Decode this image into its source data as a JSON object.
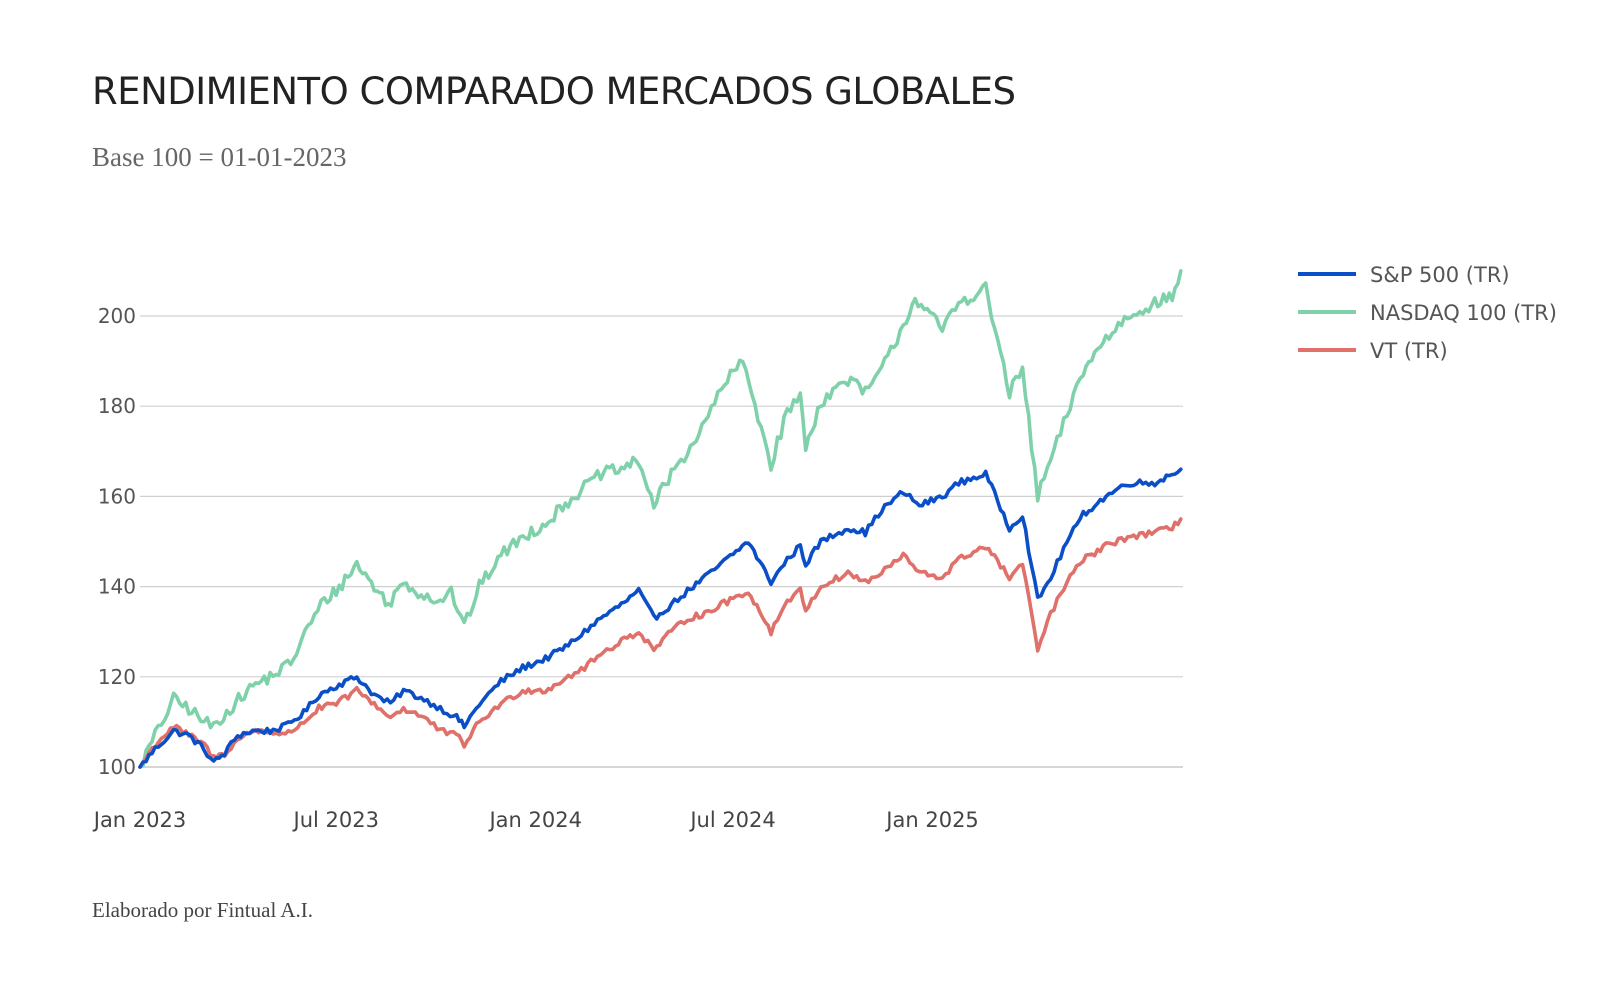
{
  "header": {
    "title": "RENDIMIENTO COMPARADO MERCADOS GLOBALES",
    "subtitle": "Base 100 = 01-01-2023"
  },
  "footer": {
    "credit": "Elaborado por Fintual A.I."
  },
  "chart_data": {
    "type": "line",
    "title": "RENDIMIENTO COMPARADO MERCADOS GLOBALES",
    "subtitle": "Base 100 = 01-01-2023",
    "xlabel": "",
    "ylabel": "",
    "ylim": [
      100,
      210
    ],
    "yticks": [
      100,
      120,
      140,
      160,
      180,
      200
    ],
    "xlim": [
      "2023-01-01",
      "2025-08-20"
    ],
    "xticks": [
      {
        "date": "2023-01-01",
        "label": "Jan 2023"
      },
      {
        "date": "2023-07-01",
        "label": "Jul 2023"
      },
      {
        "date": "2024-01-01",
        "label": "Jan 2024"
      },
      {
        "date": "2024-07-01",
        "label": "Jul 2024"
      },
      {
        "date": "2025-01-01",
        "label": "Jan 2025"
      }
    ],
    "grid": "horizontal",
    "legend_position": "right",
    "series": [
      {
        "name": "S&P 500 (TR)",
        "color": "#0a4fc8",
        "points": [
          [
            "2023-01-01",
            100
          ],
          [
            "2023-01-15",
            104
          ],
          [
            "2023-02-01",
            108
          ],
          [
            "2023-02-15",
            107
          ],
          [
            "2023-03-01",
            104
          ],
          [
            "2023-03-10",
            101
          ],
          [
            "2023-03-20",
            103
          ],
          [
            "2023-04-01",
            107
          ],
          [
            "2023-04-15",
            108
          ],
          [
            "2023-05-01",
            108
          ],
          [
            "2023-05-15",
            109
          ],
          [
            "2023-06-01",
            112
          ],
          [
            "2023-06-15",
            116
          ],
          [
            "2023-07-01",
            118
          ],
          [
            "2023-07-20",
            120
          ],
          [
            "2023-08-05",
            116
          ],
          [
            "2023-08-20",
            114
          ],
          [
            "2023-09-01",
            117
          ],
          [
            "2023-09-20",
            115
          ],
          [
            "2023-10-05",
            113
          ],
          [
            "2023-10-20",
            111
          ],
          [
            "2023-10-27",
            109
          ],
          [
            "2023-11-10",
            114
          ],
          [
            "2023-11-30",
            119
          ],
          [
            "2023-12-20",
            122
          ],
          [
            "2024-01-10",
            124
          ],
          [
            "2024-01-31",
            127
          ],
          [
            "2024-02-15",
            130
          ],
          [
            "2024-03-01",
            133
          ],
          [
            "2024-03-20",
            136
          ],
          [
            "2024-04-05",
            139
          ],
          [
            "2024-04-19",
            133
          ],
          [
            "2024-05-05",
            136
          ],
          [
            "2024-05-20",
            139
          ],
          [
            "2024-06-05",
            142
          ],
          [
            "2024-06-20",
            145
          ],
          [
            "2024-07-15",
            150
          ],
          [
            "2024-08-05",
            141
          ],
          [
            "2024-08-20",
            146
          ],
          [
            "2024-09-01",
            149
          ],
          [
            "2024-09-06",
            145
          ],
          [
            "2024-09-20",
            150
          ],
          [
            "2024-10-15",
            153
          ],
          [
            "2024-10-31",
            152
          ],
          [
            "2024-11-15",
            157
          ],
          [
            "2024-12-05",
            161
          ],
          [
            "2024-12-20",
            158
          ],
          [
            "2025-01-10",
            160
          ],
          [
            "2025-01-25",
            163
          ],
          [
            "2025-02-19",
            165
          ],
          [
            "2025-03-13",
            153
          ],
          [
            "2025-03-25",
            156
          ],
          [
            "2025-04-08",
            137
          ],
          [
            "2025-04-20",
            142
          ],
          [
            "2025-05-05",
            150
          ],
          [
            "2025-05-20",
            156
          ],
          [
            "2025-06-10",
            160
          ],
          [
            "2025-06-30",
            163
          ],
          [
            "2025-07-25",
            163
          ],
          [
            "2025-08-10",
            165
          ],
          [
            "2025-08-18",
            166
          ]
        ]
      },
      {
        "name": "NASDAQ 100 (TR)",
        "color": "#7fd1aa",
        "points": [
          [
            "2023-01-01",
            100
          ],
          [
            "2023-01-15",
            107
          ],
          [
            "2023-02-01",
            115
          ],
          [
            "2023-02-15",
            113
          ],
          [
            "2023-03-01",
            110
          ],
          [
            "2023-03-10",
            109
          ],
          [
            "2023-03-25",
            113
          ],
          [
            "2023-04-15",
            118
          ],
          [
            "2023-05-01",
            120
          ],
          [
            "2023-05-20",
            123
          ],
          [
            "2023-06-05",
            131
          ],
          [
            "2023-06-20",
            137
          ],
          [
            "2023-07-01",
            139
          ],
          [
            "2023-07-20",
            145
          ],
          [
            "2023-08-05",
            140
          ],
          [
            "2023-08-18",
            136
          ],
          [
            "2023-09-01",
            141
          ],
          [
            "2023-09-20",
            138
          ],
          [
            "2023-10-05",
            137
          ],
          [
            "2023-10-15",
            139
          ],
          [
            "2023-10-27",
            131
          ],
          [
            "2023-11-10",
            140
          ],
          [
            "2023-11-30",
            147
          ],
          [
            "2023-12-20",
            151
          ],
          [
            "2024-01-10",
            154
          ],
          [
            "2024-01-31",
            159
          ],
          [
            "2024-02-15",
            162
          ],
          [
            "2024-03-01",
            165
          ],
          [
            "2024-03-20",
            166
          ],
          [
            "2024-04-05",
            168
          ],
          [
            "2024-04-19",
            158
          ],
          [
            "2024-05-05",
            165
          ],
          [
            "2024-05-20",
            170
          ],
          [
            "2024-06-05",
            176
          ],
          [
            "2024-06-20",
            184
          ],
          [
            "2024-07-10",
            190
          ],
          [
            "2024-07-24",
            178
          ],
          [
            "2024-08-05",
            167
          ],
          [
            "2024-08-20",
            179
          ],
          [
            "2024-09-01",
            182
          ],
          [
            "2024-09-06",
            171
          ],
          [
            "2024-09-20",
            181
          ],
          [
            "2024-10-15",
            186
          ],
          [
            "2024-10-31",
            183
          ],
          [
            "2024-11-15",
            188
          ],
          [
            "2024-12-05",
            198
          ],
          [
            "2024-12-16",
            204
          ],
          [
            "2025-01-10",
            197
          ],
          [
            "2025-01-25",
            203
          ],
          [
            "2025-02-19",
            206
          ],
          [
            "2025-03-13",
            183
          ],
          [
            "2025-03-25",
            188
          ],
          [
            "2025-04-08",
            160
          ],
          [
            "2025-04-20",
            168
          ],
          [
            "2025-05-05",
            178
          ],
          [
            "2025-05-20",
            188
          ],
          [
            "2025-06-10",
            195
          ],
          [
            "2025-06-30",
            200
          ],
          [
            "2025-07-25",
            203
          ],
          [
            "2025-08-10",
            204
          ],
          [
            "2025-08-18",
            210
          ]
        ]
      },
      {
        "name": "VT (TR)",
        "color": "#e0706a",
        "points": [
          [
            "2023-01-01",
            100
          ],
          [
            "2023-01-15",
            105
          ],
          [
            "2023-02-01",
            109
          ],
          [
            "2023-02-15",
            107
          ],
          [
            "2023-03-01",
            105
          ],
          [
            "2023-03-10",
            102
          ],
          [
            "2023-03-20",
            103
          ],
          [
            "2023-04-01",
            106
          ],
          [
            "2023-04-15",
            108
          ],
          [
            "2023-05-01",
            108
          ],
          [
            "2023-05-15",
            107
          ],
          [
            "2023-06-01",
            110
          ],
          [
            "2023-06-15",
            113
          ],
          [
            "2023-07-01",
            114
          ],
          [
            "2023-07-20",
            117
          ],
          [
            "2023-08-05",
            114
          ],
          [
            "2023-08-20",
            111
          ],
          [
            "2023-09-01",
            113
          ],
          [
            "2023-09-20",
            111
          ],
          [
            "2023-10-05",
            108
          ],
          [
            "2023-10-20",
            107
          ],
          [
            "2023-10-27",
            105
          ],
          [
            "2023-11-10",
            110
          ],
          [
            "2023-11-30",
            114
          ],
          [
            "2023-12-20",
            117
          ],
          [
            "2024-01-10",
            117
          ],
          [
            "2024-01-31",
            120
          ],
          [
            "2024-02-15",
            122
          ],
          [
            "2024-03-01",
            125
          ],
          [
            "2024-03-20",
            128
          ],
          [
            "2024-04-05",
            130
          ],
          [
            "2024-04-19",
            126
          ],
          [
            "2024-05-05",
            130
          ],
          [
            "2024-05-20",
            133
          ],
          [
            "2024-06-05",
            134
          ],
          [
            "2024-06-20",
            136
          ],
          [
            "2024-07-15",
            139
          ],
          [
            "2024-08-05",
            130
          ],
          [
            "2024-08-20",
            137
          ],
          [
            "2024-09-01",
            139
          ],
          [
            "2024-09-06",
            135
          ],
          [
            "2024-09-20",
            140
          ],
          [
            "2024-10-15",
            143
          ],
          [
            "2024-10-31",
            141
          ],
          [
            "2024-11-15",
            143
          ],
          [
            "2024-12-05",
            147
          ],
          [
            "2024-12-20",
            143
          ],
          [
            "2025-01-10",
            142
          ],
          [
            "2025-01-25",
            146
          ],
          [
            "2025-02-19",
            149
          ],
          [
            "2025-03-13",
            142
          ],
          [
            "2025-03-25",
            145
          ],
          [
            "2025-04-08",
            126
          ],
          [
            "2025-04-20",
            134
          ],
          [
            "2025-05-05",
            141
          ],
          [
            "2025-05-20",
            146
          ],
          [
            "2025-06-10",
            149
          ],
          [
            "2025-06-30",
            151
          ],
          [
            "2025-07-25",
            152
          ],
          [
            "2025-08-10",
            153
          ],
          [
            "2025-08-18",
            155
          ]
        ]
      }
    ]
  }
}
